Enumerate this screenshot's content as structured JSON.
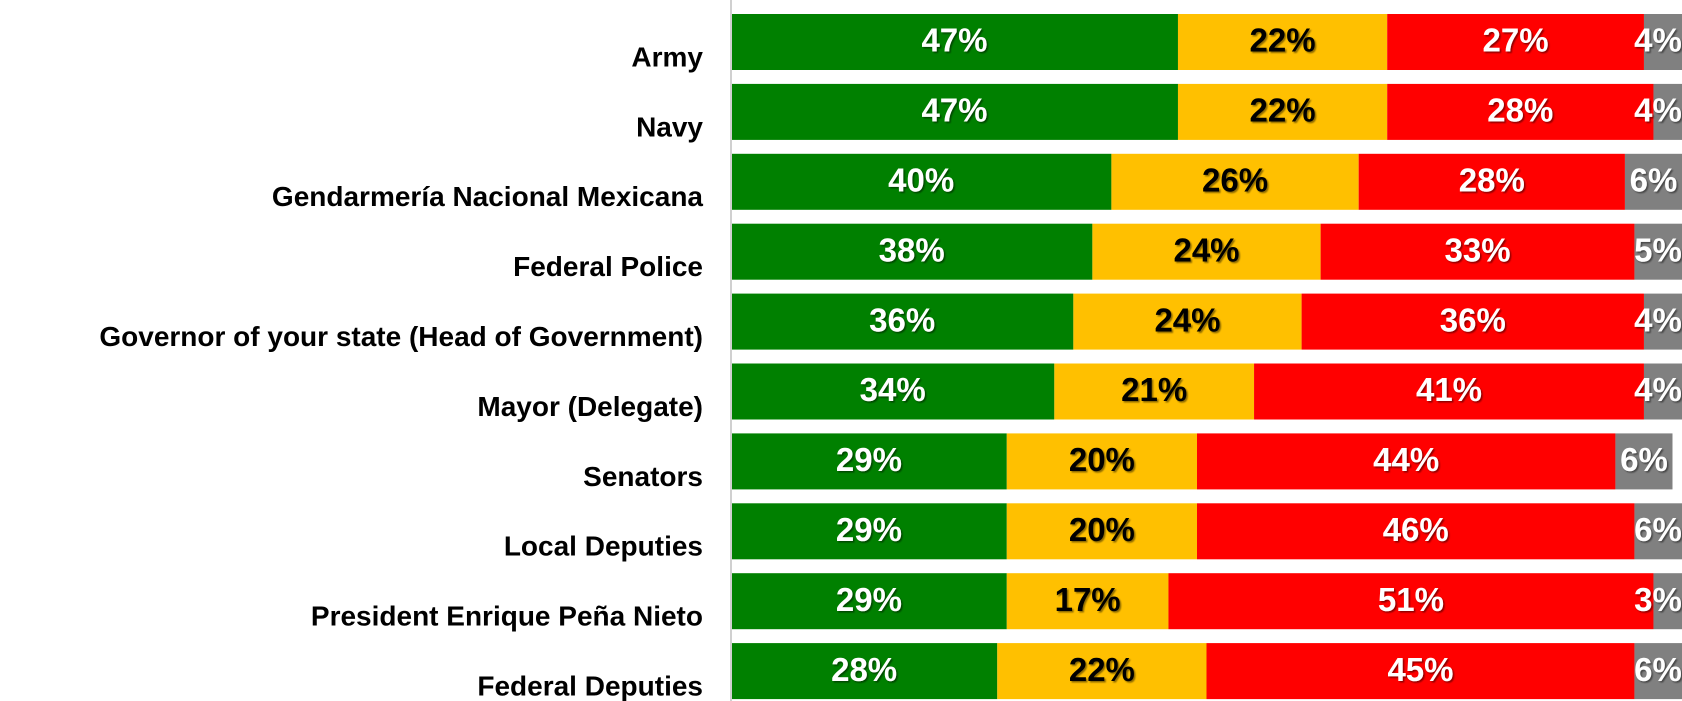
{
  "chart_data": {
    "type": "stacked-bar-horizontal",
    "categories": [
      "Army",
      "Navy",
      "Gendarmería Nacional Mexicana",
      "Federal Police",
      "Governor of your state (Head of Government)",
      "Mayor (Delegate)",
      "Senators",
      "Local Deputies",
      "President Enrique Peña Nieto",
      "Federal Deputies"
    ],
    "series": [
      {
        "color": "#008000",
        "label_color": "#ffffff",
        "values": [
          47,
          47,
          40,
          38,
          36,
          34,
          29,
          29,
          29,
          28
        ],
        "value_labels": [
          "47%",
          "47%",
          "40%",
          "38%",
          "36%",
          "34%",
          "29%",
          "29%",
          "29%",
          "28%"
        ]
      },
      {
        "color": "#ffc000",
        "label_color": "#000000",
        "values": [
          22,
          22,
          26,
          24,
          24,
          21,
          20,
          20,
          17,
          22
        ],
        "value_labels": [
          "22%",
          "22%",
          "26%",
          "24%",
          "24%",
          "21%",
          "20%",
          "20%",
          "17%",
          "22%"
        ]
      },
      {
        "color": "#ff0000",
        "label_color": "#ffffff",
        "values": [
          27,
          28,
          28,
          33,
          36,
          41,
          44,
          46,
          51,
          45
        ],
        "value_labels": [
          "27%",
          "28%",
          "28%",
          "33%",
          "36%",
          "41%",
          "44%",
          "46%",
          "51%",
          "45%"
        ]
      },
      {
        "color": "#808080",
        "label_color": "#ffffff",
        "values": [
          4,
          4,
          6,
          5,
          4,
          4,
          6,
          6,
          3,
          6
        ],
        "value_labels": [
          "4%",
          "4%",
          "6%",
          "5%",
          "4%",
          "4%",
          "6%",
          "6%",
          "3%",
          "6%"
        ]
      }
    ],
    "xlim": [
      0,
      100
    ]
  }
}
